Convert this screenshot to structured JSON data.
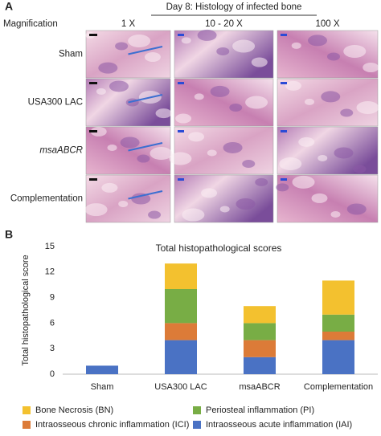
{
  "panel_a": {
    "label": "A",
    "header": "Day 8: Histology of infected bone",
    "row_header": "Magnification",
    "columns": [
      "1 X",
      "10 - 20 X",
      "100 X"
    ],
    "rows": [
      "Sham",
      "USA300 LAC",
      "msaABCR",
      "Complementation"
    ]
  },
  "chart_data": {
    "type": "stacked_bar",
    "panel_label": "B",
    "title": "Total histopathological scores",
    "y_label": "Total histopathological score",
    "categories": [
      "Sham",
      "USA300 LAC",
      "msaABCR",
      "Complementation"
    ],
    "series": [
      {
        "name": "Intraosseous acute inflammation (IAI)",
        "color": "#4a72c4",
        "values": [
          1,
          4,
          2,
          4
        ]
      },
      {
        "name": "Intraosseous chronic inflammation (ICI)",
        "color": "#dc7b38",
        "values": [
          0,
          2,
          2,
          1
        ]
      },
      {
        "name": "Periosteal inflammation (PI)",
        "color": "#78ad45",
        "values": [
          0,
          4,
          2,
          2
        ]
      },
      {
        "name": "Bone Necrosis (BN)",
        "color": "#f3c12f",
        "values": [
          0,
          3,
          2,
          4
        ]
      }
    ],
    "ylim": [
      0,
      15
    ],
    "yticks": [
      0,
      3,
      6,
      9,
      12,
      15
    ],
    "grid": false
  }
}
